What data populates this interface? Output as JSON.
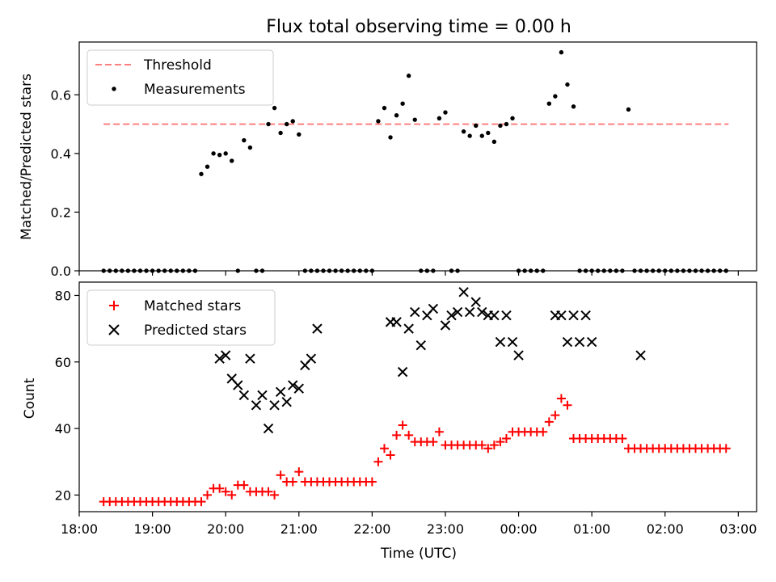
{
  "title": "Flux total observing time = 0.00 h",
  "xlabel": "Time (UTC)",
  "colors": {
    "threshold": "#ff7f7f",
    "measurement": "#000000",
    "matched": "#ff0000",
    "predicted": "#000000"
  },
  "chart_data": [
    {
      "type": "scatter",
      "ylabel": "Matched/Predicted stars",
      "xlim": [
        "18:00",
        "03:15"
      ],
      "ylim": [
        0,
        0.78
      ],
      "yticks": [
        "0.0",
        "0.2",
        "0.4",
        "0.6"
      ],
      "legend": {
        "placement": "top-left",
        "entries": [
          "Threshold",
          "Measurements"
        ]
      },
      "threshold": {
        "name": "Threshold",
        "y": 0.5,
        "x_range": [
          "18:20",
          "02:52"
        ]
      },
      "series": [
        {
          "name": "Measurements",
          "x": [
            "18:20",
            "18:25",
            "18:30",
            "18:35",
            "18:40",
            "18:45",
            "18:50",
            "18:55",
            "19:00",
            "19:05",
            "19:10",
            "19:15",
            "19:20",
            "19:25",
            "19:30",
            "19:35",
            "19:40",
            "19:45",
            "19:50",
            "19:55",
            "20:00",
            "20:05",
            "20:10",
            "20:15",
            "20:20",
            "20:25",
            "20:30",
            "20:35",
            "20:40",
            "20:45",
            "20:50",
            "20:55",
            "21:00",
            "21:05",
            "21:10",
            "21:15",
            "21:20",
            "21:25",
            "21:30",
            "21:35",
            "21:40",
            "21:45",
            "21:50",
            "21:55",
            "22:00",
            "22:05",
            "22:10",
            "22:15",
            "22:20",
            "22:25",
            "22:30",
            "22:35",
            "22:40",
            "22:45",
            "22:50",
            "22:55",
            "23:00",
            "23:05",
            "23:10",
            "23:15",
            "23:20",
            "23:25",
            "23:30",
            "23:35",
            "23:40",
            "23:45",
            "23:50",
            "23:55",
            "00:00",
            "00:05",
            "00:10",
            "00:15",
            "00:20",
            "00:25",
            "00:30",
            "00:35",
            "00:40",
            "00:45",
            "00:50",
            "00:55",
            "01:00",
            "01:05",
            "01:10",
            "01:15",
            "01:20",
            "01:25",
            "01:30",
            "01:35",
            "01:40",
            "01:45",
            "01:50",
            "01:55",
            "02:00",
            "02:05",
            "02:10",
            "02:15",
            "02:20",
            "02:25",
            "02:30",
            "02:35",
            "02:40",
            "02:45",
            "02:50"
          ],
          "y": [
            0,
            0,
            0,
            0,
            0,
            0,
            0,
            0,
            0,
            0,
            0,
            0,
            0,
            0,
            0,
            0,
            0.33,
            0.355,
            0.4,
            0.395,
            0.4,
            0.375,
            0,
            0.445,
            0.42,
            0,
            0,
            0.5,
            0.555,
            0.47,
            0.5,
            0.51,
            0.465,
            0,
            0,
            0,
            0,
            0,
            0,
            0,
            0,
            0,
            0,
            0,
            0,
            0.51,
            0.555,
            0.455,
            0.53,
            0.57,
            0.665,
            0.515,
            0,
            0,
            0,
            0.52,
            0.54,
            0,
            0,
            0.475,
            0.46,
            0.495,
            0.46,
            0.47,
            0.44,
            0.495,
            0.5,
            0.52,
            0,
            0,
            0,
            0,
            0,
            0.57,
            0.595,
            0.745,
            0.635,
            0.56,
            0,
            0,
            0,
            0,
            0,
            0,
            0,
            0,
            0.55,
            0,
            0,
            0,
            0,
            0,
            0,
            0,
            0,
            0,
            0,
            0,
            0,
            0,
            0,
            0,
            0
          ]
        }
      ]
    },
    {
      "type": "scatter",
      "ylabel": "Count",
      "xlim": [
        "18:00",
        "03:15"
      ],
      "ylim": [
        15,
        84
      ],
      "yticks": [
        "20",
        "40",
        "60",
        "80"
      ],
      "xticks": [
        "18:00",
        "19:00",
        "20:00",
        "21:00",
        "22:00",
        "23:00",
        "00:00",
        "01:00",
        "02:00",
        "03:00"
      ],
      "legend": {
        "placement": "top-left",
        "entries": [
          "Matched stars",
          "Predicted stars"
        ]
      },
      "series": [
        {
          "name": "Matched stars",
          "x": [
            "18:20",
            "18:25",
            "18:30",
            "18:35",
            "18:40",
            "18:45",
            "18:50",
            "18:55",
            "19:00",
            "19:05",
            "19:10",
            "19:15",
            "19:20",
            "19:25",
            "19:30",
            "19:35",
            "19:40",
            "19:45",
            "19:50",
            "19:55",
            "20:00",
            "20:05",
            "20:10",
            "20:15",
            "20:20",
            "20:25",
            "20:30",
            "20:35",
            "20:40",
            "20:45",
            "20:50",
            "20:55",
            "21:00",
            "21:05",
            "21:10",
            "21:15",
            "21:20",
            "21:25",
            "21:30",
            "21:35",
            "21:40",
            "21:45",
            "21:50",
            "21:55",
            "22:00",
            "22:05",
            "22:10",
            "22:15",
            "22:20",
            "22:25",
            "22:30",
            "22:35",
            "22:40",
            "22:45",
            "22:50",
            "22:55",
            "23:00",
            "23:05",
            "23:10",
            "23:15",
            "23:20",
            "23:25",
            "23:30",
            "23:35",
            "23:40",
            "23:45",
            "23:50",
            "23:55",
            "00:00",
            "00:05",
            "00:10",
            "00:15",
            "00:20",
            "00:25",
            "00:30",
            "00:35",
            "00:40",
            "00:45",
            "00:50",
            "00:55",
            "01:00",
            "01:05",
            "01:10",
            "01:15",
            "01:20",
            "01:25",
            "01:30",
            "01:35",
            "01:40",
            "01:45",
            "01:50",
            "01:55",
            "02:00",
            "02:05",
            "02:10",
            "02:15",
            "02:20",
            "02:25",
            "02:30",
            "02:35",
            "02:40",
            "02:45",
            "02:50"
          ],
          "y": [
            18,
            18,
            18,
            18,
            18,
            18,
            18,
            18,
            18,
            18,
            18,
            18,
            18,
            18,
            18,
            18,
            18,
            20,
            22,
            22,
            21,
            20,
            23,
            23,
            21,
            21,
            21,
            21,
            20,
            26,
            24,
            24,
            27,
            24,
            24,
            24,
            24,
            24,
            24,
            24,
            24,
            24,
            24,
            24,
            24,
            30,
            34,
            32,
            38,
            41,
            38,
            36,
            36,
            36,
            36,
            39,
            35,
            35,
            35,
            35,
            35,
            35,
            35,
            34,
            35,
            36,
            37,
            39,
            39,
            39,
            39,
            39,
            39,
            42,
            44,
            49,
            47,
            37,
            37,
            37,
            37,
            37,
            37,
            37,
            37,
            37,
            34,
            34,
            34,
            34,
            34,
            34,
            34,
            34,
            34,
            34,
            34,
            34,
            34,
            34,
            34,
            34,
            34
          ]
        },
        {
          "name": "Predicted stars",
          "x": [
            "19:55",
            "20:00",
            "20:05",
            "20:10",
            "20:15",
            "20:20",
            "20:25",
            "20:30",
            "20:35",
            "20:40",
            "20:45",
            "20:50",
            "20:55",
            "21:00",
            "21:05",
            "21:10",
            "21:15",
            "22:15",
            "22:20",
            "22:25",
            "22:30",
            "22:35",
            "22:40",
            "22:45",
            "22:50",
            "23:00",
            "23:05",
            "23:10",
            "23:15",
            "23:20",
            "23:25",
            "23:30",
            "23:35",
            "23:40",
            "23:45",
            "23:50",
            "23:55",
            "00:00",
            "00:30",
            "00:35",
            "00:40",
            "00:45",
            "00:50",
            "00:55",
            "01:00",
            "01:40"
          ],
          "y": [
            61,
            62,
            55,
            53,
            50,
            61,
            47,
            50,
            40,
            47,
            51,
            48,
            53,
            52,
            59,
            61,
            70,
            72,
            72,
            57,
            70,
            75,
            65,
            74,
            76,
            71,
            74,
            75,
            81,
            75,
            78,
            75,
            74,
            74,
            66,
            74,
            66,
            62,
            74,
            74,
            66,
            74,
            66,
            74,
            66,
            62
          ]
        }
      ]
    }
  ]
}
